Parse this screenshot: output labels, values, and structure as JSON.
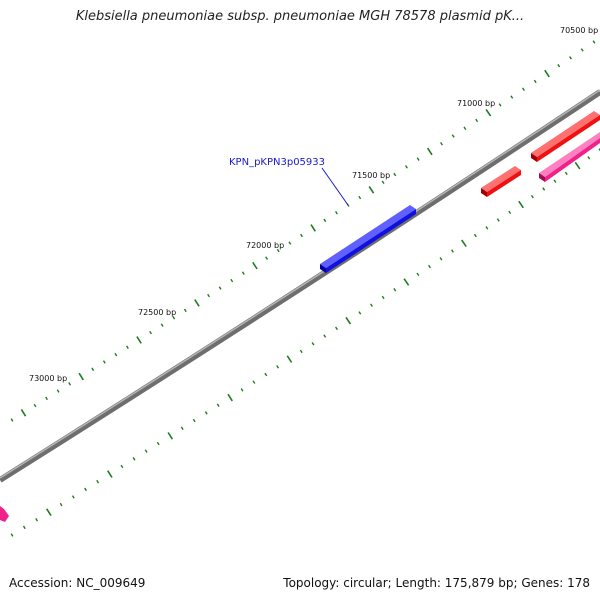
{
  "title": "Klebsiella pneumoniae subsp. pneumoniae MGH 78578 plasmid pK...",
  "footer": {
    "accession": "Accession: NC_009649",
    "summary": "Topology: circular; Length: 175,879 bp; Genes: 178"
  },
  "colors": {
    "backbone": "#808080",
    "tick": "#1e7d1e",
    "gene_blue": "#1010e0",
    "gene_red": "#ee1111",
    "gene_pink": "#ee2288",
    "gene_label": "#1a1acc"
  },
  "map": {
    "ticks_bp": [
      70500,
      71000,
      71500,
      72000,
      72500,
      73000
    ],
    "tick_labels": [
      "70500 bp",
      "71000 bp",
      "71500 bp",
      "72000 bp",
      "72500 bp",
      "73000 bp"
    ],
    "highlight_label": "KPN_pKPN3p05933",
    "features": [
      {
        "id": "blue-gene",
        "strand": "+",
        "color": "blue"
      },
      {
        "id": "red-gene-1",
        "strand": "-",
        "color": "red"
      },
      {
        "id": "red-gene-2",
        "strand": "-",
        "color": "red"
      },
      {
        "id": "pink-gene-1",
        "strand": "-",
        "color": "pink"
      },
      {
        "id": "pink-gene-2",
        "strand": "-",
        "color": "pink"
      }
    ]
  }
}
